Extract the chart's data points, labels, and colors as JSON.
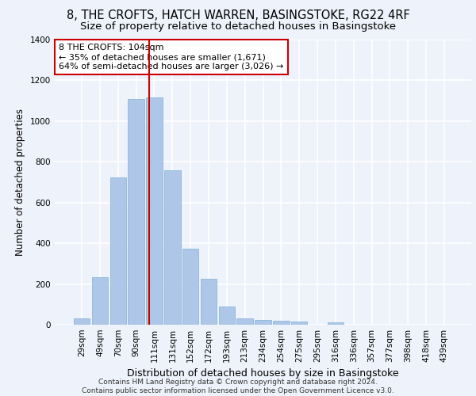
{
  "title1": "8, THE CROFTS, HATCH WARREN, BASINGSTOKE, RG22 4RF",
  "title2": "Size of property relative to detached houses in Basingstoke",
  "xlabel": "Distribution of detached houses by size in Basingstoke",
  "ylabel": "Number of detached properties",
  "categories": [
    "29sqm",
    "49sqm",
    "70sqm",
    "90sqm",
    "111sqm",
    "131sqm",
    "152sqm",
    "172sqm",
    "193sqm",
    "213sqm",
    "234sqm",
    "254sqm",
    "275sqm",
    "295sqm",
    "316sqm",
    "336sqm",
    "357sqm",
    "377sqm",
    "398sqm",
    "418sqm",
    "439sqm"
  ],
  "values": [
    30,
    235,
    725,
    1110,
    1115,
    760,
    375,
    225,
    90,
    30,
    25,
    20,
    15,
    0,
    10,
    0,
    0,
    0,
    0,
    0,
    0
  ],
  "bar_color": "#aec6e8",
  "bar_edge_color": "#8cb8d8",
  "vline_x_index": 3.72,
  "vline_color": "#cc0000",
  "annotation_text": "8 THE CROFTS: 104sqm\n← 35% of detached houses are smaller (1,671)\n64% of semi-detached houses are larger (3,026) →",
  "annotation_box_color": "#ffffff",
  "annotation_box_edge": "#cc0000",
  "ylim": [
    0,
    1400
  ],
  "yticks": [
    0,
    200,
    400,
    600,
    800,
    1000,
    1200,
    1400
  ],
  "footer": "Contains HM Land Registry data © Crown copyright and database right 2024.\nContains public sector information licensed under the Open Government Licence v3.0.",
  "background_color": "#eef2fa",
  "grid_color": "#ffffff",
  "title1_fontsize": 10.5,
  "title2_fontsize": 9.5,
  "xlabel_fontsize": 9,
  "ylabel_fontsize": 8.5,
  "tick_fontsize": 7.5,
  "footer_fontsize": 6.5,
  "annotation_fontsize": 8
}
